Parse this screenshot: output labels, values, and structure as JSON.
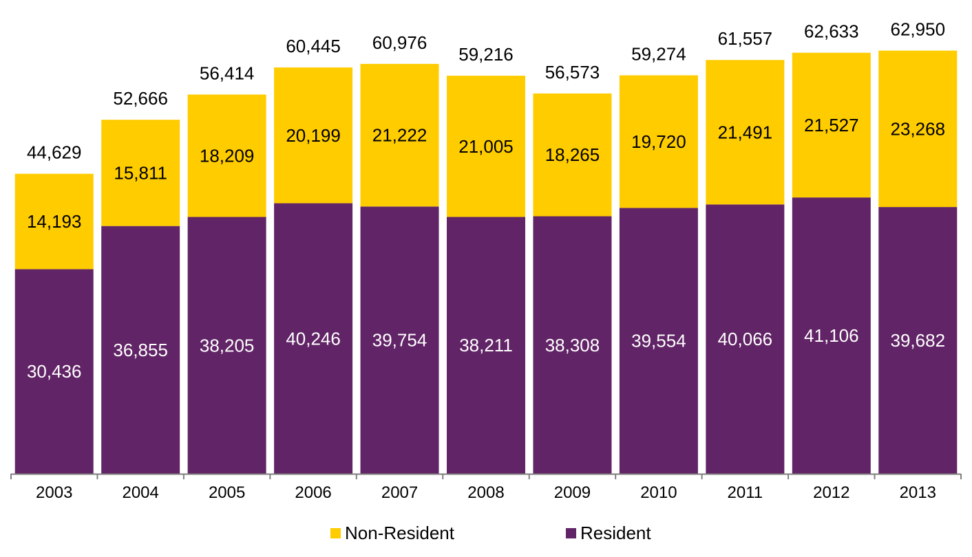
{
  "chart_data": {
    "type": "bar",
    "stacked": true,
    "title": "",
    "xlabel": "",
    "ylabel": "",
    "categories": [
      "2003",
      "2004",
      "2005",
      "2006",
      "2007",
      "2008",
      "2009",
      "2010",
      "2011",
      "2012",
      "2013"
    ],
    "series": [
      {
        "name": "Resident",
        "color": "#612466",
        "values": [
          30436,
          36855,
          38205,
          40246,
          39754,
          38211,
          38308,
          39554,
          40066,
          41106,
          39682
        ],
        "labels": [
          "30,436",
          "36,855",
          "38,205",
          "40,246",
          "39,754",
          "38,211",
          "38,308",
          "39,554",
          "40,066",
          "41,106",
          "39,682"
        ]
      },
      {
        "name": "Non-Resident",
        "color": "#FFCC00",
        "values": [
          14193,
          15811,
          18209,
          20199,
          21222,
          21005,
          18265,
          19720,
          21491,
          21527,
          23268
        ],
        "labels": [
          "14,193",
          "15,811",
          "18,209",
          "20,199",
          "21,222",
          "21,005",
          "18,265",
          "19,720",
          "21,491",
          "21,527",
          "23,268"
        ]
      }
    ],
    "totals": [
      44629,
      52666,
      56414,
      60445,
      60976,
      59216,
      56573,
      59274,
      61557,
      62633,
      62950
    ],
    "total_labels": [
      "44,629",
      "52,666",
      "56,414",
      "60,445",
      "60,976",
      "59,216",
      "56,573",
      "59,274",
      "61,557",
      "62,633",
      "62,950"
    ],
    "ylim": [
      0,
      65000
    ],
    "grid": false,
    "legend": "bottom",
    "axis_color": "#7f7f7f"
  },
  "legend": {
    "items": [
      {
        "label": "Non-Resident",
        "color": "#FFCC00"
      },
      {
        "label": "Resident",
        "color": "#612466"
      }
    ]
  }
}
